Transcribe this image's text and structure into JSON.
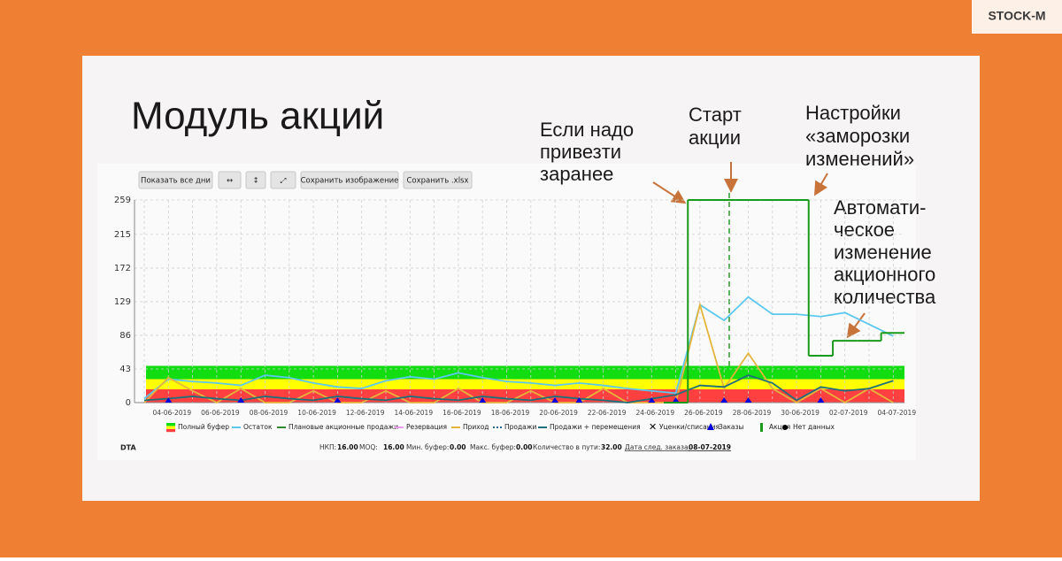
{
  "logo": "STOCK-M",
  "title": "Модуль акций",
  "toolbar": [
    "Показать все дни",
    "↔",
    "↕",
    "⤢",
    "Сохранить изображение",
    "Сохранить .xlsx"
  ],
  "annotations": [
    {
      "lines": [
        "Если надо",
        "привезти",
        "заранее"
      ]
    },
    {
      "lines": [
        "Старт",
        "акции"
      ]
    },
    {
      "lines": [
        "Настройки",
        "«заморозки",
        "изменений»"
      ]
    },
    {
      "lines": [
        "Автомати-",
        "ческое",
        "изменение",
        "акционного",
        "количества"
      ]
    }
  ],
  "chart_data": {
    "type": "line",
    "categories": [
      null,
      "04-06-2019",
      null,
      "06-06-2019",
      null,
      "08-06-2019",
      null,
      "10-06-2019",
      null,
      "12-06-2019",
      null,
      "14-06-2019",
      null,
      "16-06-2019",
      null,
      "18-06-2019",
      null,
      "20-06-2019",
      null,
      "22-06-2019",
      null,
      "24-06-2019",
      null,
      "26-06-2019",
      null,
      "28-06-2019",
      null,
      "30-06-2019",
      null,
      "02-07-2019",
      null,
      "04-07-2019"
    ],
    "ylim": [
      0,
      259
    ],
    "yticks": [
      0,
      43,
      86,
      129,
      172,
      215,
      259
    ],
    "grid": true,
    "buffer": {
      "name": "Полный буфер",
      "segments": [
        17,
        13,
        17
      ],
      "colors": [
        "#ff4040",
        "#ffff00",
        "#11dd11"
      ]
    },
    "series": [
      {
        "name": "Остаток",
        "color": "#5bc8ee",
        "style": "line",
        "values": [
          5,
          30,
          27,
          25,
          22,
          35,
          32,
          25,
          20,
          18,
          28,
          33,
          30,
          38,
          32,
          27,
          25,
          22,
          25,
          22,
          18,
          15,
          12,
          125,
          105,
          135,
          113,
          113,
          110,
          115,
          100,
          85
        ]
      },
      {
        "name": "Плановые акционные продажи",
        "color": "#2e8b2e",
        "style": "line"
      },
      {
        "name": "Резервация",
        "color": "#e89be8",
        "style": "line"
      },
      {
        "name": "Приход",
        "color": "#e6b43c",
        "style": "line",
        "values": [
          0,
          32,
          15,
          0,
          18,
          0,
          0,
          15,
          0,
          0,
          15,
          0,
          0,
          18,
          0,
          0,
          15,
          0,
          0,
          18,
          0,
          0,
          0,
          125,
          18,
          63,
          18,
          0,
          18,
          0,
          18,
          0
        ]
      },
      {
        "name": "Продажи",
        "color": "#1f6b8a",
        "style": "dotted"
      },
      {
        "name": "Продажи + перемещения",
        "color": "#1f6f7a",
        "style": "line",
        "values": [
          3,
          5,
          8,
          5,
          3,
          8,
          5,
          3,
          8,
          5,
          3,
          8,
          5,
          3,
          8,
          5,
          3,
          8,
          5,
          3,
          0,
          5,
          10,
          22,
          20,
          35,
          25,
          3,
          20,
          15,
          18,
          28
        ]
      },
      {
        "name": "Уценки/списания",
        "color": "#000000",
        "style": "x"
      },
      {
        "name": "Заказы",
        "color": "#0000dd",
        "style": "triangle",
        "values": [
          null,
          0,
          null,
          null,
          0,
          null,
          null,
          null,
          0,
          null,
          null,
          null,
          null,
          null,
          0,
          null,
          null,
          0,
          0,
          null,
          null,
          0,
          0,
          null,
          0,
          0,
          null,
          null,
          0,
          null,
          null,
          null
        ]
      },
      {
        "name": "Акция",
        "color": "#1a9a1a",
        "style": "step",
        "values": [
          null,
          null,
          null,
          null,
          null,
          null,
          null,
          null,
          null,
          null,
          null,
          null,
          null,
          null,
          null,
          null,
          null,
          null,
          null,
          null,
          null,
          null,
          0,
          259,
          259,
          259,
          259,
          259,
          60,
          79,
          79,
          89
        ]
      },
      {
        "name": "Нет данных",
        "color": "#000000",
        "style": "dot"
      }
    ]
  },
  "info": {
    "code": "DTA",
    "items": [
      {
        "label": "НКП:",
        "value": "16.00"
      },
      {
        "label": "MOQ:",
        "value": "16.00"
      },
      {
        "label": "Мин. буфер:",
        "value": "0.00"
      },
      {
        "label": "Макс. буфер:",
        "value": "0.00"
      },
      {
        "label": "Количество в пути:",
        "value": "32.00"
      },
      {
        "label": "Дата след. заказа:",
        "value": "08-07-2019"
      }
    ]
  }
}
